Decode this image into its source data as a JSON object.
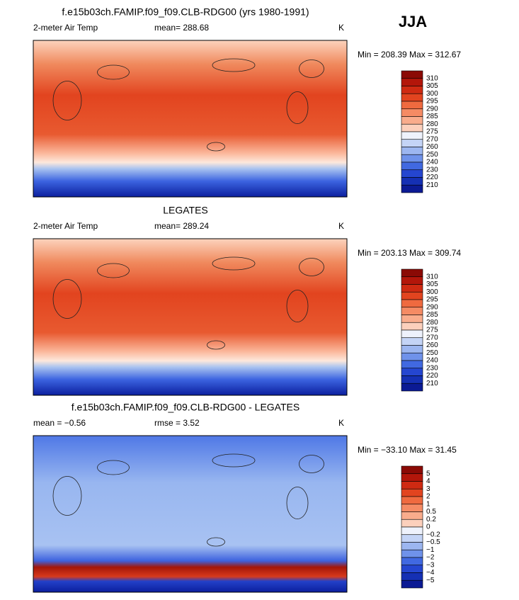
{
  "header": {
    "season": "JJA"
  },
  "panels": [
    {
      "title": "f.e15b03ch.FAMIP.f09_f09.CLB-RDG00 (yrs 1980-1991)",
      "left_label": "2-meter Air Temp",
      "center_label": "mean= 288.68",
      "units": "K",
      "minmax": "Min = 208.39 Max = 312.67",
      "colorbar_labels": [
        "310",
        "305",
        "300",
        "295",
        "290",
        "285",
        "280",
        "275",
        "270",
        "260",
        "250",
        "240",
        "230",
        "220",
        "210"
      ]
    },
    {
      "title": "LEGATES",
      "left_label": "2-meter Air Temp",
      "center_label": "mean= 289.24",
      "units": "K",
      "minmax": "Min = 203.13 Max = 309.74",
      "colorbar_labels": [
        "310",
        "305",
        "300",
        "295",
        "290",
        "285",
        "280",
        "275",
        "270",
        "260",
        "250",
        "240",
        "230",
        "220",
        "210"
      ]
    },
    {
      "title": "f.e15b03ch.FAMIP.f09_f09.CLB-RDG00 - LEGATES",
      "left_label": "mean =   −0.56",
      "center_label": "rmse =    3.52",
      "units": "K",
      "minmax": "Min = −33.10 Max =  31.45",
      "colorbar_labels": [
        "5",
        "4",
        "3",
        "2",
        "1",
        "0.5",
        "0.2",
        "0",
        "−0.2",
        "−0.5",
        "−1",
        "−2",
        "−3",
        "−4",
        "−5"
      ]
    }
  ]
}
